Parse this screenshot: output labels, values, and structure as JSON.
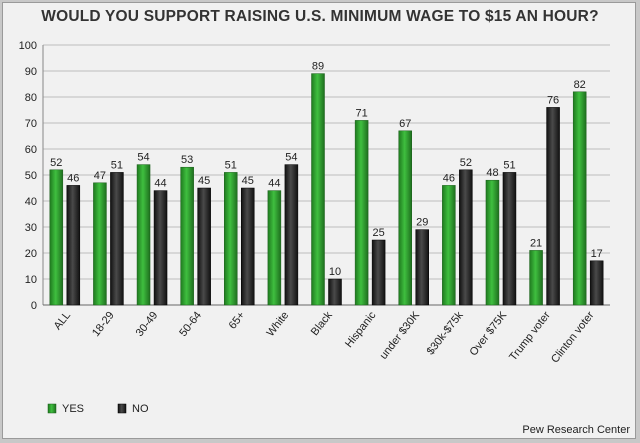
{
  "chart_data": {
    "type": "bar",
    "title": "WOULD YOU SUPPORT RAISING U.S. MINIMUM WAGE TO $15 AN HOUR?",
    "categories": [
      "ALL",
      "18-29",
      "30-49",
      "50-64",
      "65+",
      "White",
      "Black",
      "Hispanic",
      "under $30K",
      "$30k-$75k",
      "Over $75K",
      "Trump voter",
      "Clinton voter"
    ],
    "series": [
      {
        "name": "YES",
        "color": "#2ea02e",
        "values": [
          52,
          47,
          54,
          53,
          51,
          44,
          89,
          71,
          67,
          46,
          48,
          21,
          82
        ]
      },
      {
        "name": "NO",
        "color": "#1f1f1f",
        "values": [
          46,
          51,
          44,
          45,
          45,
          54,
          10,
          25,
          29,
          52,
          51,
          76,
          17
        ]
      }
    ],
    "ylim": [
      0,
      100
    ],
    "yticks": [
      0,
      10,
      20,
      30,
      40,
      50,
      60,
      70,
      80,
      90,
      100
    ],
    "grid": true,
    "legend_position": "bottom-left",
    "source": "Pew Research Center"
  }
}
